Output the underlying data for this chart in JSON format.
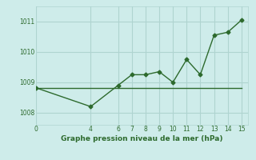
{
  "xlabel": "Graphe pression niveau de la mer (hPa)",
  "bg_color": "#ceecea",
  "grid_color": "#afd4d0",
  "line_color": "#2d6a2d",
  "xlim": [
    0,
    15.5
  ],
  "ylim": [
    1007.6,
    1011.5
  ],
  "xticks": [
    0,
    4,
    6,
    7,
    8,
    9,
    10,
    11,
    12,
    13,
    14,
    15
  ],
  "yticks": [
    1008,
    1009,
    1010,
    1011
  ],
  "line1_x": [
    0,
    1,
    2,
    3,
    4,
    5,
    6,
    7,
    8,
    9,
    10,
    11,
    12,
    13,
    14,
    15
  ],
  "line1_y": [
    1008.82,
    1008.82,
    1008.82,
    1008.82,
    1008.82,
    1008.82,
    1008.82,
    1008.82,
    1008.82,
    1008.82,
    1008.82,
    1008.82,
    1008.82,
    1008.82,
    1008.82,
    1008.82
  ],
  "line2_x": [
    0,
    4,
    6,
    7,
    8,
    9,
    10,
    11,
    12,
    13,
    14,
    15
  ],
  "line2_y": [
    1008.82,
    1008.2,
    1008.9,
    1009.25,
    1009.25,
    1009.35,
    1009.0,
    1009.75,
    1009.25,
    1010.55,
    1010.65,
    1011.05
  ]
}
